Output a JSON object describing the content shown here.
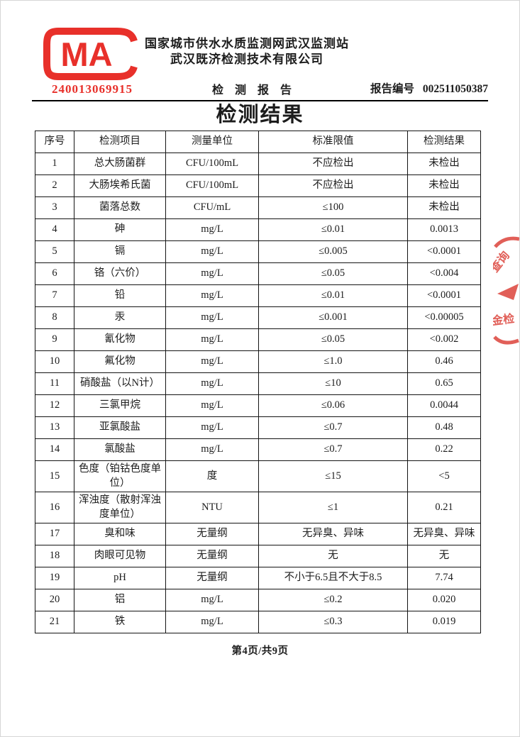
{
  "document": {
    "cma_badge": {
      "letters": "MA",
      "number": "240013069915"
    },
    "org": {
      "line1": "国家城市供水水质监测网武汉监测站",
      "line2": "武汉既济检测技术有限公司"
    },
    "report": {
      "title": "检 测 报 告",
      "number_label": "报告编号",
      "number": "002511050387"
    },
    "section_title": "检测结果",
    "table": {
      "headers": [
        "序号",
        "检测项目",
        "测量单位",
        "标准限值",
        "检测结果"
      ],
      "rows": [
        [
          "1",
          "总大肠菌群",
          "CFU/100mL",
          "不应检出",
          "未检出"
        ],
        [
          "2",
          "大肠埃希氏菌",
          "CFU/100mL",
          "不应检出",
          "未检出"
        ],
        [
          "3",
          "菌落总数",
          "CFU/mL",
          "≤100",
          "未检出"
        ],
        [
          "4",
          "砷",
          "mg/L",
          "≤0.01",
          "0.0013"
        ],
        [
          "5",
          "镉",
          "mg/L",
          "≤0.005",
          "<0.0001"
        ],
        [
          "6",
          "铬（六价）",
          "mg/L",
          "≤0.05",
          "<0.004"
        ],
        [
          "7",
          "铅",
          "mg/L",
          "≤0.01",
          "<0.0001"
        ],
        [
          "8",
          "汞",
          "mg/L",
          "≤0.001",
          "<0.00005"
        ],
        [
          "9",
          "氰化物",
          "mg/L",
          "≤0.05",
          "<0.002"
        ],
        [
          "10",
          "氟化物",
          "mg/L",
          "≤1.0",
          "0.46"
        ],
        [
          "11",
          "硝酸盐（以N计）",
          "mg/L",
          "≤10",
          "0.65"
        ],
        [
          "12",
          "三氯甲烷",
          "mg/L",
          "≤0.06",
          "0.0044"
        ],
        [
          "13",
          "亚氯酸盐",
          "mg/L",
          "≤0.7",
          "0.48"
        ],
        [
          "14",
          "氯酸盐",
          "mg/L",
          "≤0.7",
          "0.22"
        ],
        [
          "15",
          "色度（铂钴色度单位）",
          "度",
          "≤15",
          "<5"
        ],
        [
          "16",
          "浑浊度（散射浑浊度单位）",
          "NTU",
          "≤1",
          "0.21"
        ],
        [
          "17",
          "臭和味",
          "无量纲",
          "无异臭、异味",
          "无异臭、异味"
        ],
        [
          "18",
          "肉眼可见物",
          "无量纲",
          "无",
          "无"
        ],
        [
          "19",
          "pH",
          "无量纲",
          "不小于6.5且不大于8.5",
          "7.74"
        ],
        [
          "20",
          "铝",
          "mg/L",
          "≤0.2",
          "0.020"
        ],
        [
          "21",
          "铁",
          "mg/L",
          "≤0.3",
          "0.019"
        ]
      ]
    },
    "footer": {
      "page_info": "第4页/共9页"
    },
    "stamp": {
      "fragment_top": "查询",
      "fragment_bottom": "金检"
    },
    "colors": {
      "accent_red": "#e8302a",
      "stamp_red": "#dd4a42"
    }
  }
}
